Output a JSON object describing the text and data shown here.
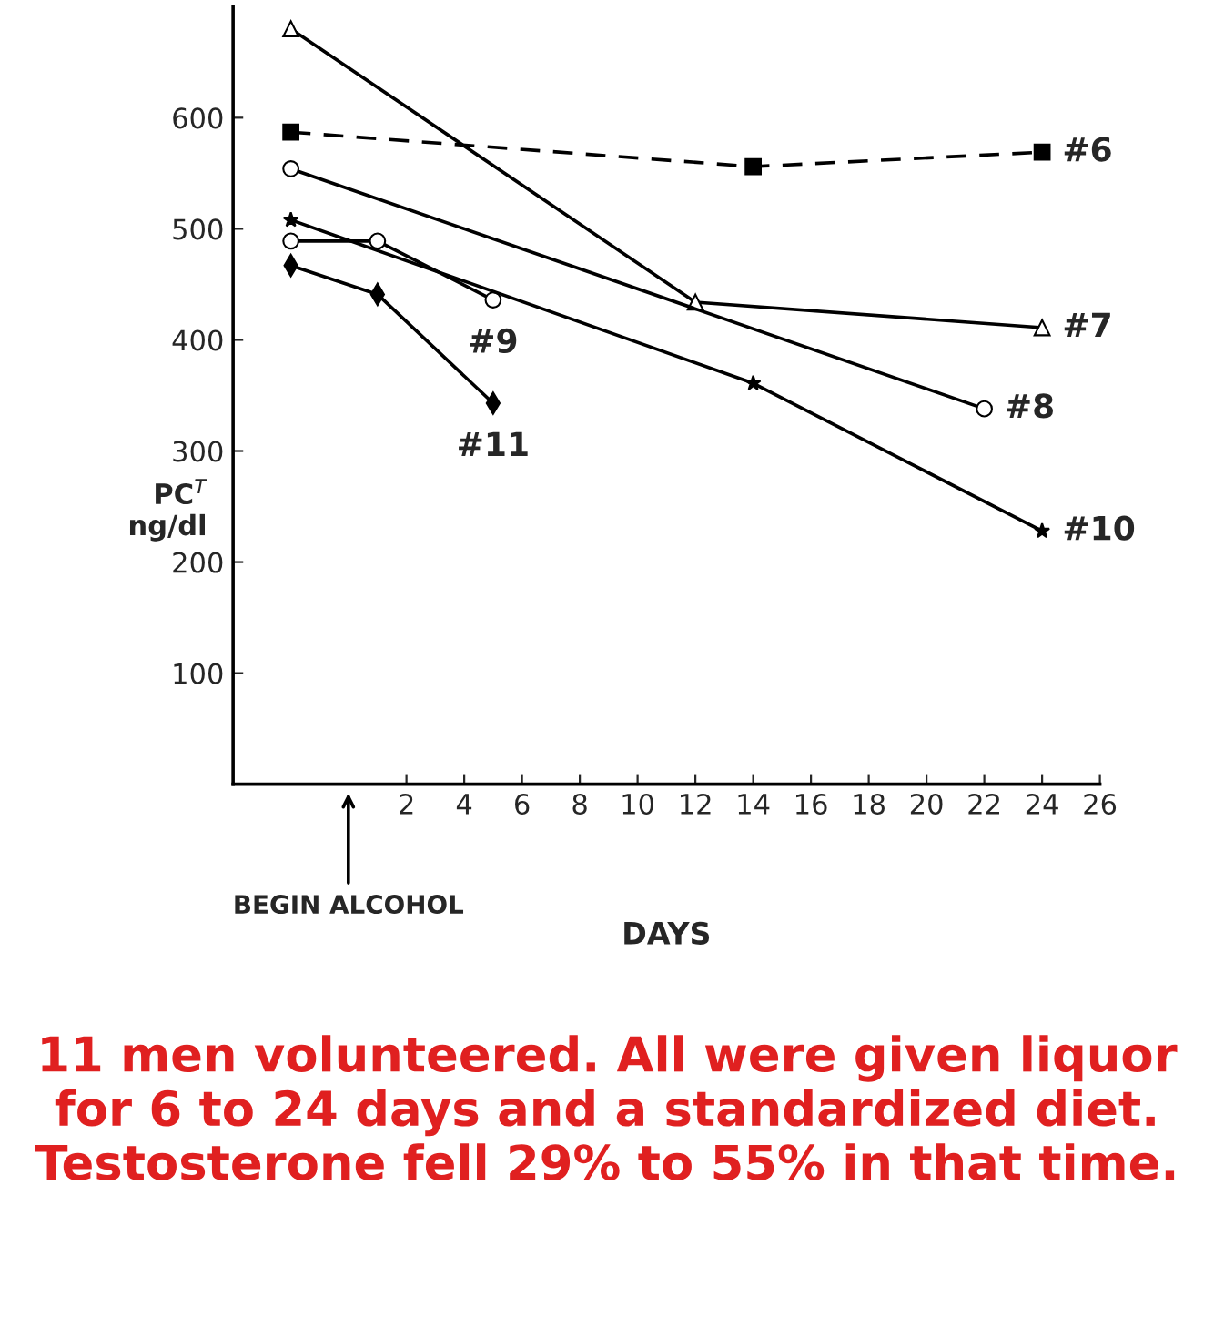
{
  "chart_data": {
    "type": "line",
    "xlabel": "DAYS",
    "ylabel": "PC$^{T}$\nng/dl",
    "xlim": [
      -4,
      26
    ],
    "xticks": [
      2,
      4,
      6,
      8,
      10,
      12,
      14,
      16,
      18,
      20,
      22,
      24,
      26
    ],
    "ylim": [
      0,
      700
    ],
    "yticks": [
      100,
      200,
      300,
      400,
      500,
      600
    ],
    "grid": false,
    "legend": false,
    "color": "#000000",
    "series": [
      {
        "name": "#6",
        "x": [
          -2,
          14,
          24
        ],
        "values": [
          587,
          556,
          569
        ],
        "marker": "square",
        "line_style": "dashed"
      },
      {
        "name": "#7",
        "x": [
          -2,
          12,
          24
        ],
        "values": [
          680,
          434,
          411
        ],
        "marker": "triangle",
        "line_style": "solid"
      },
      {
        "name": "#8",
        "x": [
          -2,
          22
        ],
        "values": [
          554,
          338
        ],
        "marker": "circle",
        "line_style": "solid"
      },
      {
        "name": "#9",
        "x": [
          -2,
          1,
          5
        ],
        "values": [
          489,
          489,
          436
        ],
        "marker": "circle",
        "line_style": "solid"
      },
      {
        "name": "#10",
        "x": [
          -2,
          14,
          24
        ],
        "values": [
          508,
          361,
          228
        ],
        "marker": "star",
        "line_style": "solid"
      },
      {
        "name": "#11",
        "x": [
          -2,
          1,
          5
        ],
        "values": [
          467,
          441,
          343
        ],
        "marker": "diamond",
        "line_style": "solid"
      }
    ],
    "annotations": [
      "BEGIN ALCOHOL",
      "11 men volunteered. All were given liquor for 6 to 24 days and a standardized diet. Testosterone fell 29% to 55% in that time."
    ]
  }
}
